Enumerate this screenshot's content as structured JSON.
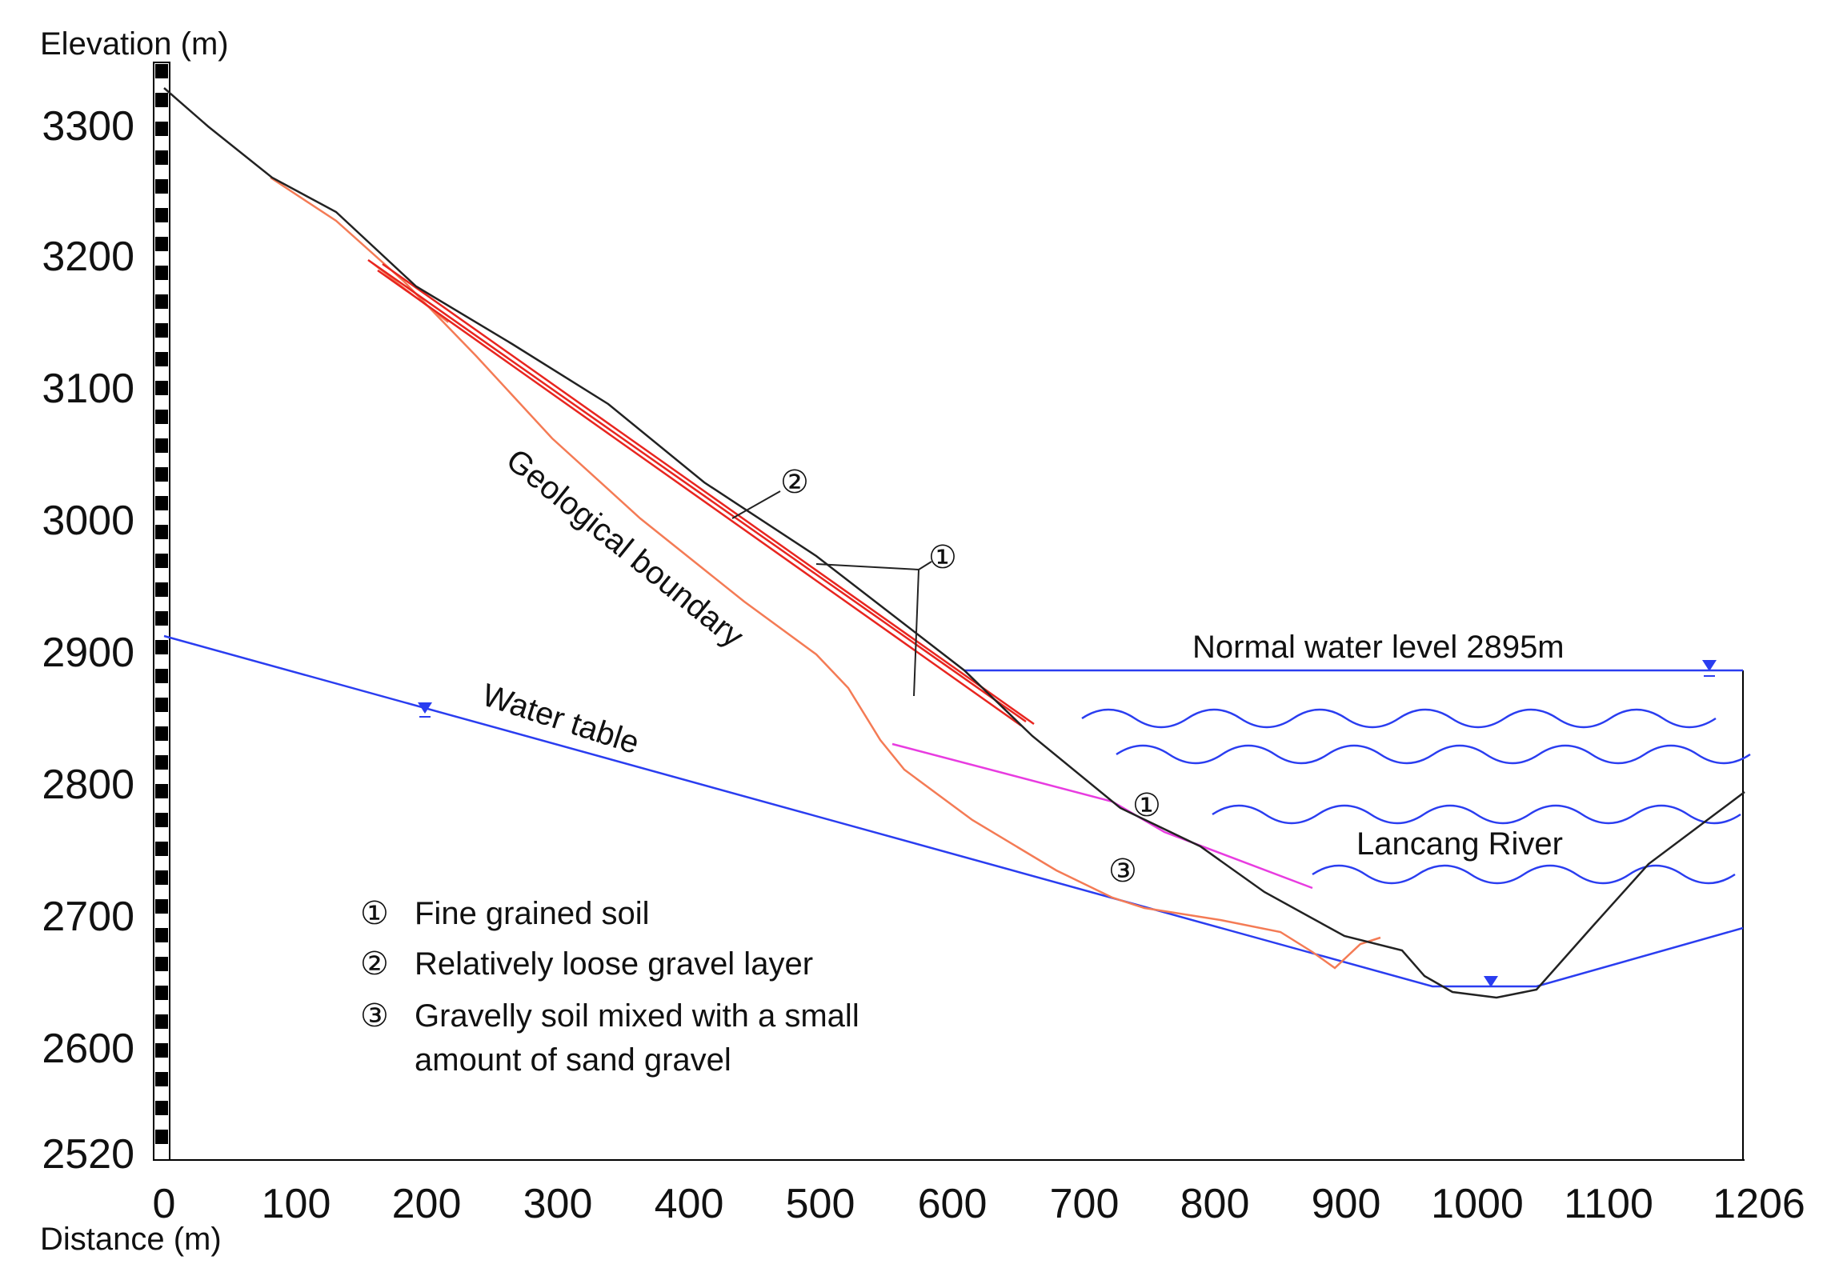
{
  "axes": {
    "y_title": "Elevation (m)",
    "x_title": "Distance (m)",
    "y_ticks": [
      "3300",
      "3200",
      "3100",
      "3000",
      "2900",
      "2800",
      "2700",
      "2600",
      "2520"
    ],
    "x_ticks": [
      "0",
      "100",
      "200",
      "300",
      "400",
      "500",
      "600",
      "700",
      "800",
      "900",
      "1000",
      "1100",
      "1206"
    ]
  },
  "labels": {
    "geological_boundary": "Geological boundary",
    "water_table": "Water table",
    "normal_water_level": "Normal water level 2895m",
    "lancang_river": "Lancang River",
    "marker_1a": "①",
    "marker_1b": "①",
    "marker_2": "②",
    "marker_3": "③"
  },
  "legend": {
    "item1_num": "①",
    "item1_text": "Fine grained soil",
    "item2_num": "②",
    "item2_text": "Relatively loose gravel layer",
    "item3_num": "③",
    "item3_text_line1": "Gravelly soil mixed with a small",
    "item3_text_line2": "amount of sand gravel"
  },
  "colors": {
    "ground": "#222222",
    "water": "#2a3df0",
    "red": "#e8251f",
    "orange": "#f47b55",
    "magenta": "#e83ce0"
  }
}
